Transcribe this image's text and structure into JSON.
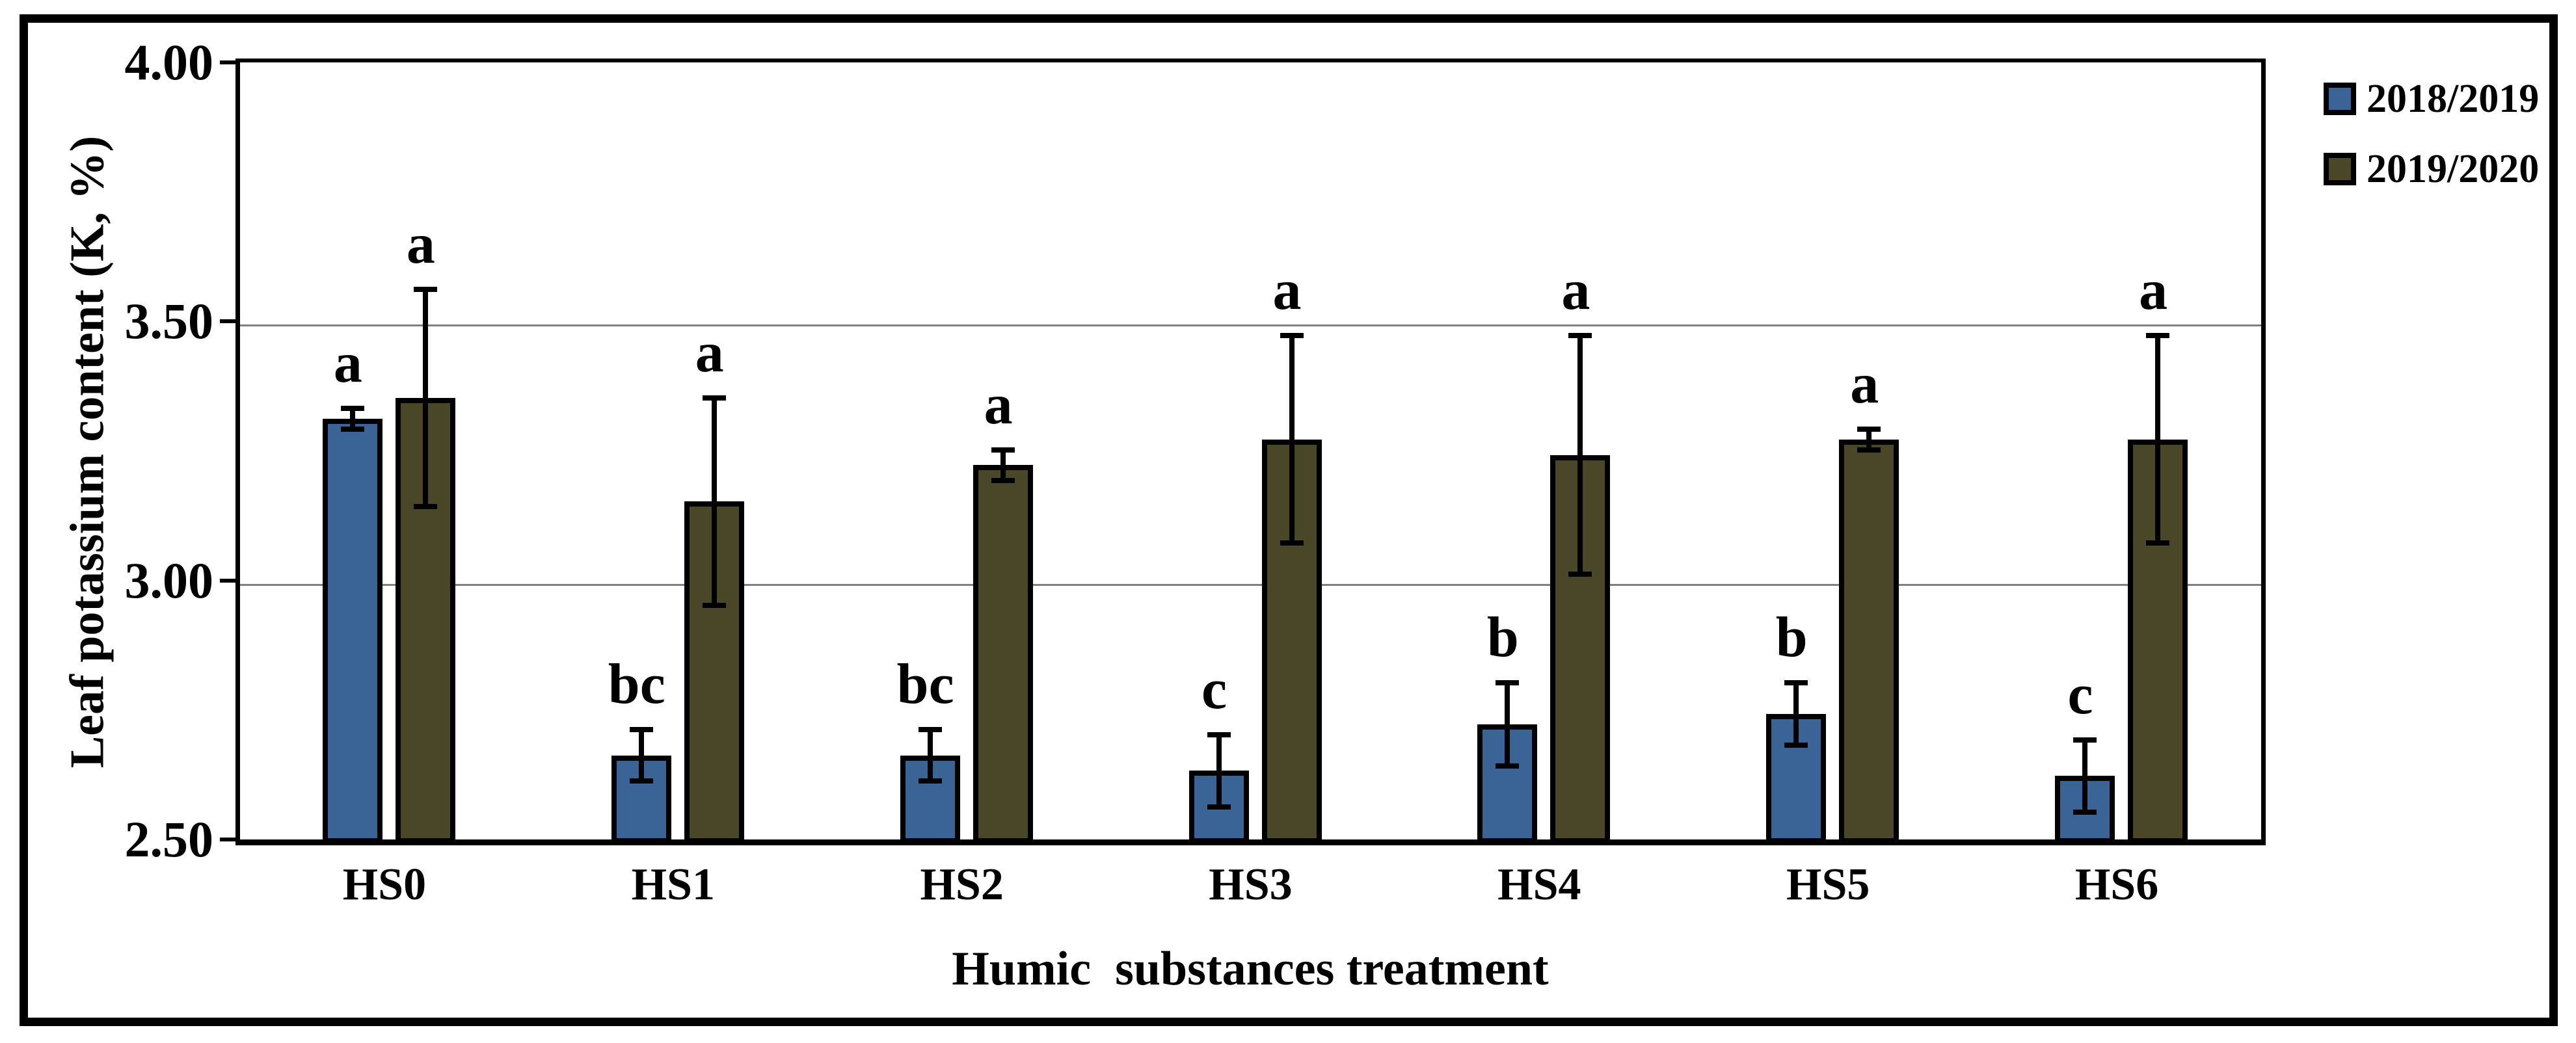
{
  "chart_data": {
    "type": "bar",
    "title": "",
    "categories": [
      "HS0",
      "HS1",
      "HS2",
      "HS3",
      "HS4",
      "HS5",
      "HS6"
    ],
    "series": [
      {
        "name": "2018/2019",
        "color": "#3A6496",
        "values": [
          3.32,
          2.67,
          2.67,
          2.64,
          2.73,
          2.75,
          2.63
        ],
        "errors": [
          0.02,
          0.05,
          0.05,
          0.07,
          0.08,
          0.06,
          0.07
        ],
        "letters": [
          "a",
          "bc",
          "bc",
          "c",
          "b",
          "b",
          "c"
        ]
      },
      {
        "name": "2019/2020",
        "color": "#4A4628",
        "values": [
          3.36,
          3.16,
          3.23,
          3.28,
          3.25,
          3.28,
          3.28
        ],
        "errors": [
          0.21,
          0.2,
          0.03,
          0.2,
          0.23,
          0.02,
          0.2
        ],
        "letters": [
          "a",
          "a",
          "a",
          "a",
          "a",
          "a",
          "a"
        ]
      }
    ],
    "xlabel": "Humic  substances treatment",
    "ylabel": "Leaf potassium content (K, %)",
    "ylim": [
      2.5,
      4.0
    ],
    "yticks": [
      {
        "label": "4.00",
        "value": 4.0
      },
      {
        "label": "3.50",
        "value": 3.5
      },
      {
        "label": "3.00",
        "value": 3.0
      },
      {
        "label": "2.50",
        "value": 2.5
      }
    ],
    "grid": "horizontal-gray",
    "legend_position": "top-right-outside",
    "error_bars": true,
    "colors": {
      "bar_border": "#000000",
      "gridline": "#808080",
      "text": "#000000",
      "frame": "#000000"
    }
  }
}
